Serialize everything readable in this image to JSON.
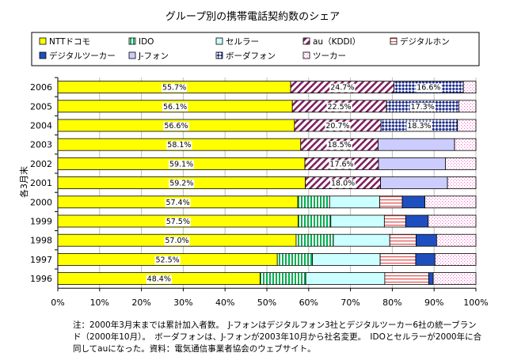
{
  "chart_data": {
    "type": "bar",
    "stacked": "percent",
    "orientation": "horizontal",
    "title": "グループ別の携帯電話契約数のシェア",
    "xlabel": "",
    "ylabel": "各3月末",
    "xlim": [
      0,
      100
    ],
    "x_ticks": [
      "0%",
      "10%",
      "20%",
      "30%",
      "40%",
      "50%",
      "60%",
      "70%",
      "80%",
      "90%",
      "100%"
    ],
    "legend_position": "top",
    "grid": true,
    "categories": [
      "2006",
      "2005",
      "2004",
      "2003",
      "2002",
      "2001",
      "2000",
      "1999",
      "1998",
      "1997",
      "1996"
    ],
    "series": [
      {
        "name": "NTTドコモ",
        "color": "#ffff00",
        "pattern": "solid",
        "values": [
          55.7,
          56.1,
          56.6,
          58.1,
          59.1,
          59.2,
          57.4,
          57.5,
          57.0,
          52.5,
          48.4
        ],
        "labels": [
          "55.7%",
          "56.1%",
          "56.6%",
          "58.1%",
          "59.1%",
          "59.2%",
          "57.4%",
          "57.5%",
          "57.0%",
          "52.5%",
          "48.4%"
        ]
      },
      {
        "name": "IDO",
        "color": "#00b050",
        "pattern": "vertical",
        "values": [
          0,
          0,
          0,
          0,
          0,
          0,
          7.6,
          7.8,
          8.9,
          8.4,
          10.9
        ]
      },
      {
        "name": "セルラー",
        "color": "#ccffff",
        "pattern": "solid",
        "values": [
          0,
          0,
          0,
          0,
          0,
          0,
          12.0,
          12.8,
          13.5,
          16.2,
          18.9
        ]
      },
      {
        "name": "au（KDDI）",
        "color": "#7f1f5f",
        "pattern": "diagonal",
        "values": [
          24.7,
          22.5,
          20.7,
          18.5,
          17.6,
          18.0,
          0,
          0,
          0,
          0,
          0
        ],
        "labels": [
          "24.7%",
          "22.5%",
          "20.7%",
          "18.5%",
          "17.6%",
          "18.0%",
          "",
          "",
          "",
          "",
          ""
        ]
      },
      {
        "name": "デジタルホン",
        "color": "#e05050",
        "pattern": "horizontal",
        "values": [
          0,
          0,
          0,
          0,
          0,
          0,
          5.4,
          5.1,
          6.3,
          8.5,
          10.5
        ]
      },
      {
        "name": "デジタルツーカー",
        "color": "#1f4fbf",
        "pattern": "solid",
        "values": [
          0,
          0,
          0,
          0,
          0,
          0,
          5.4,
          5.4,
          4.9,
          4.6,
          1.1
        ]
      },
      {
        "name": "J-フォン",
        "color": "#ccccff",
        "pattern": "solid",
        "values": [
          0,
          0,
          0,
          18.3,
          16.0,
          16.0,
          0,
          0,
          0,
          0,
          0
        ]
      },
      {
        "name": "ボーダフォン",
        "color": "#1f2f8f",
        "pattern": "checker",
        "values": [
          16.6,
          17.3,
          18.3,
          0,
          0,
          0,
          0,
          0,
          0,
          0,
          0
        ],
        "labels": [
          "16.6%",
          "17.3%",
          "18.3%",
          "",
          "",
          "",
          "",
          "",
          "",
          "",
          ""
        ]
      },
      {
        "name": "ツーカー",
        "color": "#ff66cc",
        "pattern": "dotted",
        "values": [
          3.0,
          4.1,
          4.4,
          5.1,
          7.3,
          6.8,
          12.2,
          11.4,
          9.4,
          9.8,
          10.2
        ]
      }
    ]
  },
  "note": "注：2000年3月末までは累計加入者数。　J-フォンはデジタルフォン3社とデジタルツーカー6社の統一ブランド（2000年10月）。　ボーダフォンは、J-フォンが2003年10月から社名変更。　IDOとセルラーが2000年に合同してauになった。資料：電気通信事業者協会のウェブサイト。"
}
